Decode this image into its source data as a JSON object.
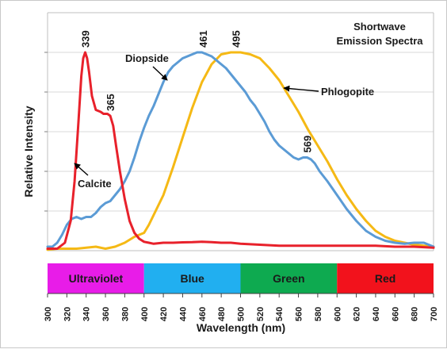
{
  "chart_data": {
    "type": "line",
    "title": "Shortwave\nEmission Spectra",
    "title_lines": [
      "Shortwave",
      "Emission Spectra"
    ],
    "xlabel": "Wavelength (nm)",
    "ylabel": "Relative Intensity",
    "xlim": [
      300,
      700
    ],
    "ylim": [
      0,
      1.0
    ],
    "x_ticks": [
      300,
      320,
      340,
      360,
      380,
      400,
      420,
      440,
      460,
      480,
      500,
      520,
      540,
      560,
      580,
      600,
      620,
      640,
      660,
      680,
      700
    ],
    "x_tick_labels": [
      "300",
      "320",
      "340",
      "360",
      "380",
      "400",
      "420",
      "440",
      "460",
      "480",
      "500",
      "520",
      "540",
      "560",
      "580",
      "600",
      "620",
      "640",
      "660",
      "680",
      "700"
    ],
    "y_gridlines": [
      0.2,
      0.4,
      0.6,
      0.8,
      1.0
    ],
    "grid": true,
    "legend": "none",
    "series": [
      {
        "name": "Calcite",
        "color": "#e8212b",
        "x": [
          300,
          310,
          318,
          324,
          328,
          332,
          335,
          337,
          339,
          341,
          343,
          346,
          350,
          355,
          358,
          362,
          365,
          368,
          371,
          375,
          380,
          385,
          390,
          395,
          400,
          405,
          410,
          420,
          430,
          440,
          450,
          460,
          470,
          480,
          490,
          500,
          520,
          540,
          560,
          580,
          600,
          620,
          640,
          660,
          680,
          700
        ],
        "y": [
          0.01,
          0.01,
          0.04,
          0.15,
          0.35,
          0.65,
          0.88,
          0.97,
          1.0,
          0.97,
          0.9,
          0.78,
          0.71,
          0.7,
          0.69,
          0.69,
          0.68,
          0.63,
          0.53,
          0.4,
          0.26,
          0.15,
          0.09,
          0.06,
          0.045,
          0.04,
          0.035,
          0.04,
          0.04,
          0.042,
          0.043,
          0.045,
          0.043,
          0.04,
          0.04,
          0.035,
          0.03,
          0.025,
          0.025,
          0.025,
          0.025,
          0.025,
          0.025,
          0.02,
          0.02,
          0.015
        ]
      },
      {
        "name": "Diopside",
        "color": "#5b9bd5",
        "x": [
          300,
          305,
          310,
          315,
          320,
          325,
          330,
          335,
          340,
          345,
          350,
          355,
          360,
          365,
          370,
          375,
          380,
          385,
          390,
          395,
          400,
          405,
          410,
          415,
          420,
          425,
          430,
          435,
          440,
          445,
          450,
          455,
          460,
          465,
          470,
          475,
          480,
          485,
          490,
          495,
          500,
          505,
          510,
          515,
          520,
          525,
          530,
          535,
          540,
          545,
          550,
          555,
          560,
          565,
          569,
          573,
          577,
          582,
          590,
          600,
          610,
          620,
          630,
          640,
          650,
          660,
          670,
          680,
          690,
          700
        ],
        "y": [
          0.02,
          0.02,
          0.04,
          0.08,
          0.13,
          0.16,
          0.17,
          0.16,
          0.17,
          0.17,
          0.19,
          0.22,
          0.24,
          0.25,
          0.28,
          0.31,
          0.35,
          0.4,
          0.47,
          0.55,
          0.62,
          0.68,
          0.73,
          0.79,
          0.85,
          0.9,
          0.93,
          0.95,
          0.97,
          0.98,
          0.99,
          1.0,
          1.0,
          0.99,
          0.98,
          0.96,
          0.94,
          0.92,
          0.89,
          0.86,
          0.83,
          0.8,
          0.76,
          0.73,
          0.69,
          0.65,
          0.6,
          0.56,
          0.53,
          0.51,
          0.49,
          0.47,
          0.46,
          0.47,
          0.47,
          0.46,
          0.44,
          0.4,
          0.35,
          0.28,
          0.21,
          0.15,
          0.1,
          0.07,
          0.05,
          0.04,
          0.035,
          0.04,
          0.04,
          0.02
        ]
      },
      {
        "name": "Phlogopite",
        "color": "#f5b915",
        "x": [
          300,
          310,
          320,
          330,
          340,
          350,
          360,
          370,
          380,
          390,
          400,
          405,
          410,
          420,
          430,
          440,
          450,
          460,
          470,
          480,
          490,
          495,
          500,
          510,
          520,
          530,
          540,
          550,
          560,
          570,
          580,
          590,
          600,
          610,
          620,
          630,
          640,
          650,
          660,
          670,
          680,
          690,
          700
        ],
        "y": [
          0.005,
          0.01,
          0.01,
          0.01,
          0.015,
          0.02,
          0.01,
          0.02,
          0.04,
          0.07,
          0.09,
          0.13,
          0.18,
          0.28,
          0.42,
          0.57,
          0.72,
          0.85,
          0.94,
          0.99,
          1.0,
          1.0,
          1.0,
          0.99,
          0.97,
          0.92,
          0.86,
          0.78,
          0.7,
          0.61,
          0.53,
          0.45,
          0.36,
          0.28,
          0.21,
          0.15,
          0.1,
          0.07,
          0.05,
          0.04,
          0.03,
          0.025,
          0.02
        ]
      }
    ],
    "peak_labels": [
      {
        "text": "339",
        "x": 339,
        "y": 1.0,
        "color": "#e8212b"
      },
      {
        "text": "365",
        "x": 365,
        "y": 0.68,
        "color": "#e8212b"
      },
      {
        "text": "461",
        "x": 461,
        "y": 1.0,
        "color": "#5b9bd5"
      },
      {
        "text": "495",
        "x": 495,
        "y": 1.0,
        "color": "#f5b915"
      },
      {
        "text": "569",
        "x": 569,
        "y": 0.47,
        "color": "#5b9bd5"
      }
    ],
    "spectrum_bands": [
      {
        "label": "Ultraviolet",
        "from": 300,
        "to": 400,
        "color": "#e81ce8"
      },
      {
        "label": "Blue",
        "from": 400,
        "to": 500,
        "color": "#21aff0"
      },
      {
        "label": "Green",
        "from": 500,
        "to": 600,
        "color": "#0eaa50"
      },
      {
        "label": "Red",
        "from": 600,
        "to": 700,
        "color": "#f2121c"
      }
    ],
    "series_annotations": [
      {
        "text": "Diopside",
        "series": "Diopside",
        "point_x": 424,
        "point_y": 0.86
      },
      {
        "text": "Phlogopite",
        "series": "Phlogopite",
        "point_x": 545,
        "point_y": 0.82
      },
      {
        "text": "Calcite",
        "series": "Calcite",
        "point_x": 328,
        "point_y": 0.44
      }
    ]
  }
}
